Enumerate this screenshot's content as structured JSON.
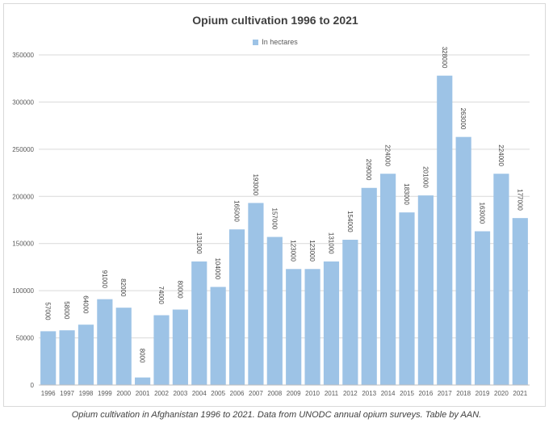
{
  "chart_data": {
    "type": "bar",
    "title": "Opium cultivation 1996 to 2021",
    "legend": "top",
    "series": [
      {
        "name": "In hectares",
        "color": "#9dc3e6",
        "values": [
          57000,
          58000,
          64000,
          91000,
          82000,
          8000,
          74000,
          80000,
          131000,
          104000,
          165000,
          193000,
          157000,
          123000,
          123000,
          131000,
          154000,
          209000,
          224000,
          183000,
          201000,
          328000,
          263000,
          163000,
          224000,
          177000
        ]
      }
    ],
    "categories": [
      "1996",
      "1997",
      "1998",
      "1999",
      "2000",
      "2001",
      "2002",
      "2003",
      "2004",
      "2005",
      "2006",
      "2007",
      "2008",
      "2009",
      "2010",
      "2011",
      "2012",
      "2013",
      "2014",
      "2015",
      "2016",
      "2017",
      "2018",
      "2019",
      "2020",
      "2021"
    ],
    "ylim": [
      0,
      350000
    ],
    "yticks": [
      0,
      50000,
      100000,
      150000,
      200000,
      250000,
      300000,
      350000
    ],
    "grid": true,
    "xlabel": "",
    "ylabel": ""
  },
  "caption": "Opium cultivation in Afghanistan 1996 to 2021. Data from UNODC annual opium surveys. Table by AAN."
}
